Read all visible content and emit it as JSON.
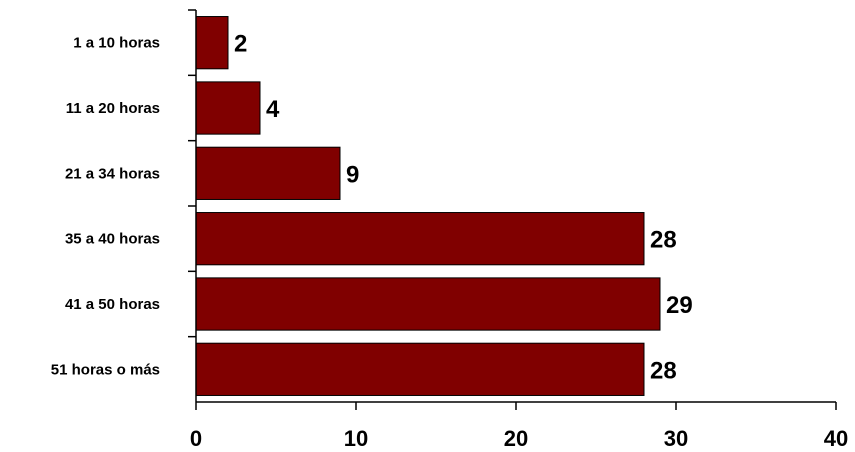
{
  "chart_data": {
    "type": "bar",
    "orientation": "horizontal",
    "categories": [
      "1 a 10 horas",
      "11 a 20 horas",
      "21 a 34 horas",
      "35 a 40 horas",
      "41 a 50 horas",
      "51 horas o más"
    ],
    "values": [
      2,
      4,
      9,
      28,
      29,
      28
    ],
    "value_labels": [
      "2",
      "4",
      "9",
      "28",
      "29",
      "28"
    ],
    "title": "",
    "xlabel": "",
    "ylabel": "",
    "xlim": [
      0,
      40
    ],
    "xticks": [
      0,
      10,
      20,
      30,
      40
    ],
    "xtick_labels": [
      "0",
      "10",
      "20",
      "30",
      "40"
    ],
    "grid": false,
    "legend": "none",
    "bar_color": "#800000",
    "bar_edge_color": "#000000"
  }
}
